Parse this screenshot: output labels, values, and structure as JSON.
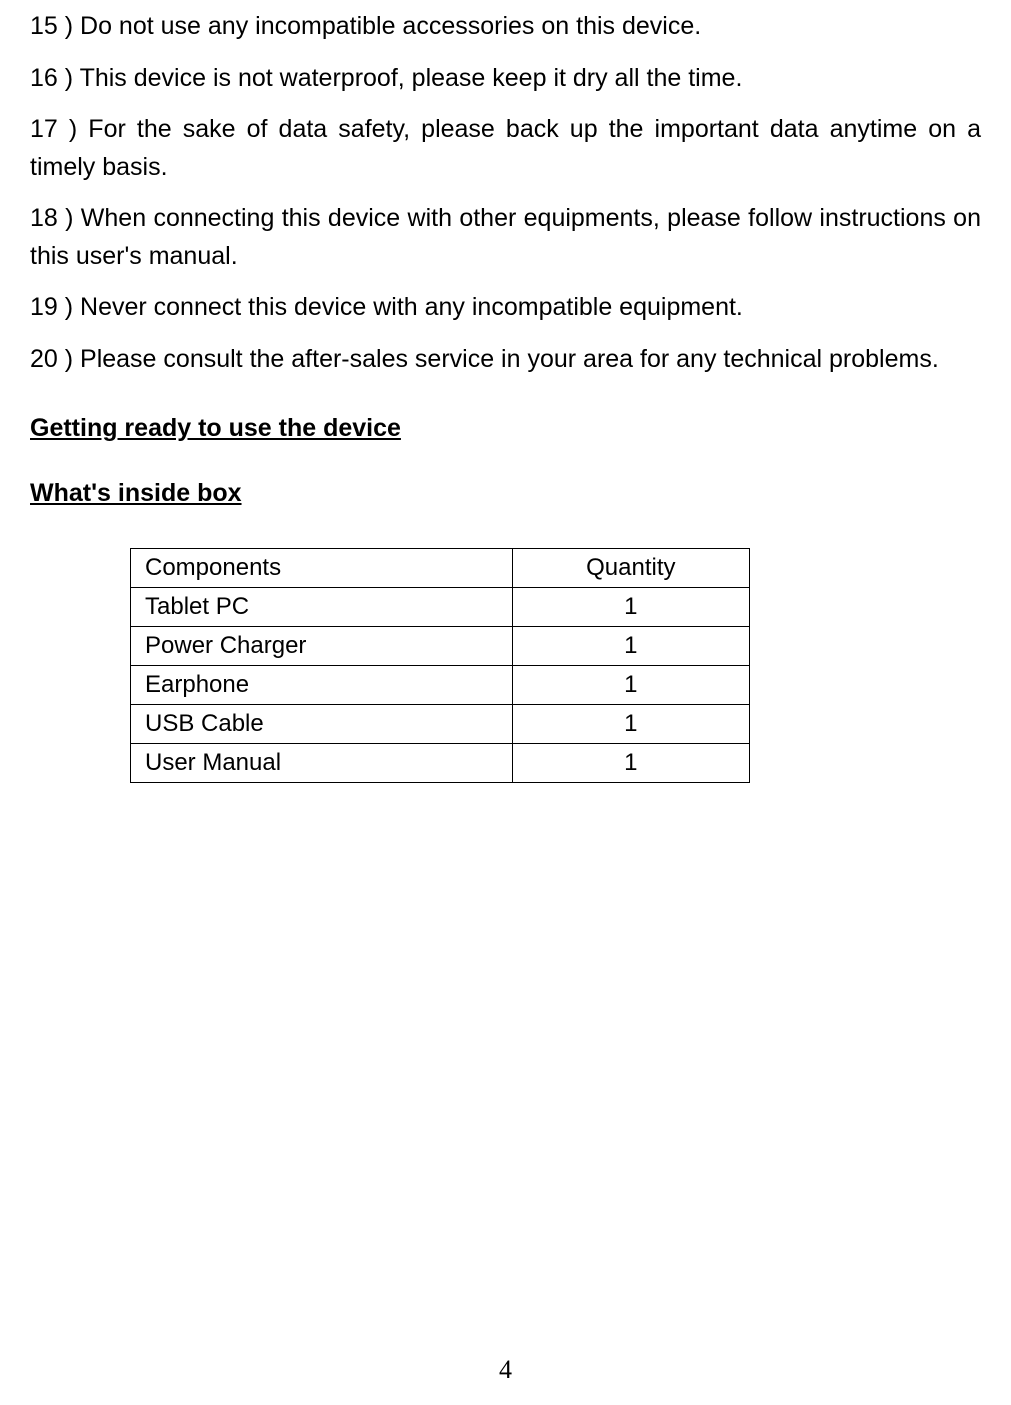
{
  "warnings": [
    "15 ) Do not use any incompatible accessories on this device.",
    "16 ) This device is not waterproof, please keep it dry all the time.",
    "17 ) For the sake of data safety, please back up the important data anytime on a timely basis.",
    "18 ) When connecting this device with other equipments, please follow instructions on this user's manual.",
    "19 ) Never connect this device with any incompatible equipment.",
    "20 ) Please consult the after-sales service in your area for any technical problems."
  ],
  "section_heading": "Getting ready to use the device",
  "sub_heading": "What's inside box",
  "table": {
    "columns": [
      "Components",
      "Quantity"
    ],
    "rows": [
      [
        "Tablet PC",
        "1"
      ],
      [
        "Power Charger",
        "1"
      ],
      [
        "Earphone",
        "1"
      ],
      [
        "USB Cable",
        "1"
      ],
      [
        "User Manual",
        "1"
      ]
    ]
  },
  "page_number": "4",
  "colors": {
    "background": "#ffffff",
    "text": "#000000",
    "border": "#000000"
  }
}
